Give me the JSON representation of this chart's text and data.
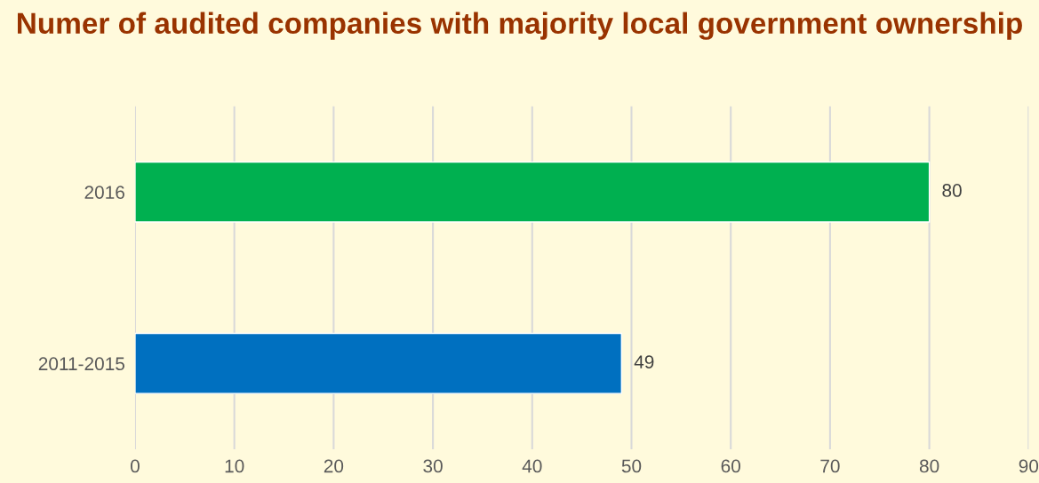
{
  "chart_data": {
    "type": "bar",
    "orientation": "horizontal",
    "title": "Numer of audited companies with majority local government ownership",
    "categories": [
      "2016",
      "2011-2015"
    ],
    "values": [
      80,
      49
    ],
    "colors": [
      "#00b050",
      "#0070c0"
    ],
    "xlim": [
      0,
      90
    ],
    "xticks": [
      0,
      10,
      20,
      30,
      40,
      50,
      60,
      70,
      80,
      90
    ],
    "grid": "x",
    "data_labels": true
  }
}
